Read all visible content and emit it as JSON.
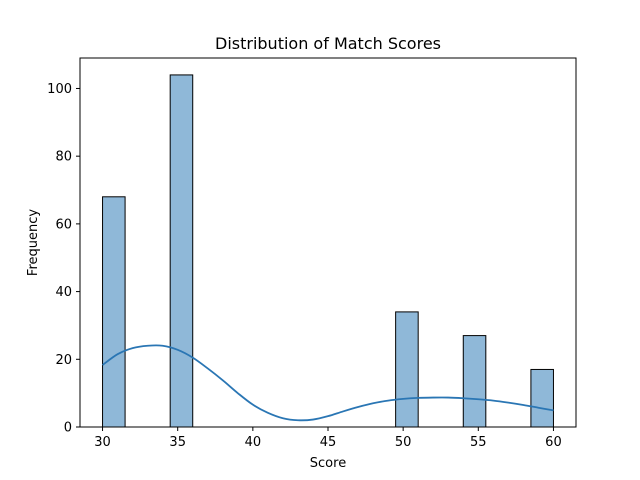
{
  "chart_data": {
    "type": "bar",
    "title": "Distribution of Match Scores",
    "xlabel": "Score",
    "ylabel": "Frequency",
    "xlim": [
      28.5,
      61.5
    ],
    "ylim": [
      0,
      109
    ],
    "xticks": [
      30,
      35,
      40,
      45,
      50,
      55,
      60
    ],
    "yticks": [
      0,
      20,
      40,
      60,
      80,
      100
    ],
    "bins": [
      {
        "x0": 30.0,
        "x1": 31.5,
        "count": 68
      },
      {
        "x0": 31.5,
        "x1": 33.0,
        "count": 0
      },
      {
        "x0": 33.0,
        "x1": 34.5,
        "count": 0
      },
      {
        "x0": 34.5,
        "x1": 36.0,
        "count": 104
      },
      {
        "x0": 36.0,
        "x1": 37.5,
        "count": 0
      },
      {
        "x0": 37.5,
        "x1": 39.0,
        "count": 0
      },
      {
        "x0": 39.0,
        "x1": 40.5,
        "count": 0
      },
      {
        "x0": 40.5,
        "x1": 42.0,
        "count": 0
      },
      {
        "x0": 42.0,
        "x1": 43.5,
        "count": 0
      },
      {
        "x0": 43.5,
        "x1": 45.0,
        "count": 0
      },
      {
        "x0": 45.0,
        "x1": 46.5,
        "count": 0
      },
      {
        "x0": 46.5,
        "x1": 48.0,
        "count": 0
      },
      {
        "x0": 48.0,
        "x1": 49.5,
        "count": 0
      },
      {
        "x0": 49.5,
        "x1": 51.0,
        "count": 34
      },
      {
        "x0": 51.0,
        "x1": 52.5,
        "count": 0
      },
      {
        "x0": 52.5,
        "x1": 54.0,
        "count": 0
      },
      {
        "x0": 54.0,
        "x1": 55.5,
        "count": 27
      },
      {
        "x0": 55.5,
        "x1": 57.0,
        "count": 0
      },
      {
        "x0": 57.0,
        "x1": 58.5,
        "count": 0
      },
      {
        "x0": 58.5,
        "x1": 60.0,
        "count": 17
      }
    ],
    "kde": {
      "x": [
        30,
        31,
        32,
        33,
        34,
        35,
        36,
        37,
        38,
        39,
        40,
        41,
        42,
        43,
        44,
        45,
        46,
        47,
        48,
        49,
        50,
        51,
        52,
        53,
        54,
        55,
        56,
        57,
        58,
        59,
        60
      ],
      "y": [
        18.3,
        21.5,
        23.3,
        24.0,
        24.0,
        22.8,
        20.5,
        17.3,
        13.8,
        10.0,
        6.6,
        4.2,
        2.6,
        2.0,
        2.2,
        3.2,
        4.6,
        5.9,
        7.0,
        7.8,
        8.3,
        8.6,
        8.7,
        8.7,
        8.5,
        8.2,
        7.8,
        7.2,
        6.5,
        5.7,
        4.9
      ]
    },
    "grid": false,
    "colors": {
      "bar_fill": "#8fb8d8",
      "bar_edge": "#000000",
      "kde_line": "#2a76b4"
    }
  }
}
